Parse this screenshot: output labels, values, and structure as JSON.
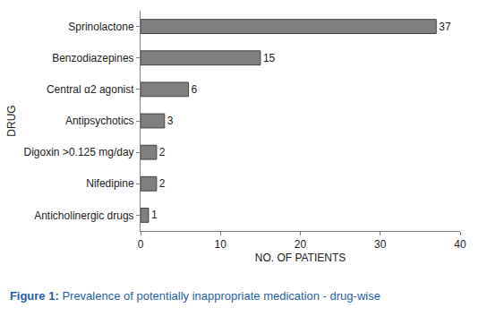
{
  "chart_data": {
    "type": "bar",
    "orientation": "horizontal",
    "title": "Figure 1: Prevalence of potentially inappropriate medication - drug-wise",
    "x_label": "NO. OF PATIENTS",
    "y_label": "DRUG",
    "categories": [
      "Sprinolactone",
      "Benzodiazepines",
      "Central α2 agonist",
      "Antipsychotics",
      "Digoxin >0.125 mg/day",
      "Nifedipine",
      "Anticholinergic drugs"
    ],
    "values": [
      37,
      15,
      6,
      3,
      2,
      2,
      1
    ],
    "color": "#7f7f7f",
    "xlim": [
      0,
      40
    ],
    "xticks": [
      0,
      10,
      20,
      30,
      40
    ],
    "grid": false,
    "data_labels": true
  }
}
